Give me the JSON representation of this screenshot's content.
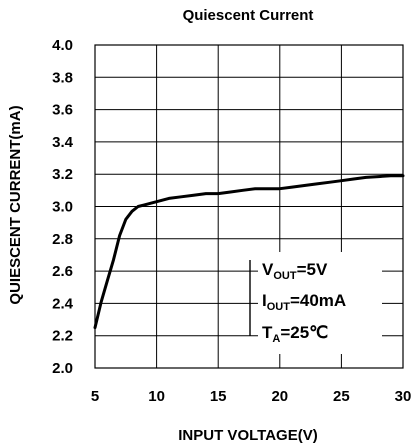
{
  "chart_data": {
    "type": "line",
    "title": "Quiescent Current",
    "xlabel": "INPUT VOLTAGE(V)",
    "ylabel": "QUIESCENT CURRENT(mA)",
    "xlim": [
      5,
      30
    ],
    "ylim": [
      2.0,
      4.0
    ],
    "x_ticks": [
      5,
      10,
      15,
      20,
      25,
      30
    ],
    "x_tick_labels": [
      "5",
      "10",
      "15",
      "20",
      "25",
      "30"
    ],
    "y_ticks": [
      2.0,
      2.2,
      2.4,
      2.6,
      2.8,
      3.0,
      3.2,
      3.4,
      3.6,
      3.8,
      4.0
    ],
    "y_tick_labels": [
      "2.0",
      "2.2",
      "2.4",
      "2.6",
      "2.8",
      "3.0",
      "3.2",
      "3.4",
      "3.6",
      "3.8",
      "4.0"
    ],
    "grid": true,
    "series": [
      {
        "color": "#000000",
        "points": [
          [
            5.0,
            2.25
          ],
          [
            5.5,
            2.41
          ],
          [
            6.0,
            2.54
          ],
          [
            6.5,
            2.67
          ],
          [
            7.0,
            2.82
          ],
          [
            7.5,
            2.92
          ],
          [
            8.0,
            2.97
          ],
          [
            8.5,
            3.0
          ],
          [
            9.0,
            3.01
          ],
          [
            9.5,
            3.02
          ],
          [
            10.0,
            3.03
          ],
          [
            11.0,
            3.05
          ],
          [
            12.0,
            3.06
          ],
          [
            13.0,
            3.07
          ],
          [
            14.0,
            3.08
          ],
          [
            15.0,
            3.08
          ],
          [
            16.0,
            3.09
          ],
          [
            17.0,
            3.1
          ],
          [
            18.0,
            3.11
          ],
          [
            19.0,
            3.11
          ],
          [
            20.0,
            3.11
          ],
          [
            21.0,
            3.12
          ],
          [
            22.0,
            3.13
          ],
          [
            23.0,
            3.14
          ],
          [
            24.0,
            3.15
          ],
          [
            25.0,
            3.16
          ],
          [
            26.0,
            3.17
          ],
          [
            27.0,
            3.18
          ],
          [
            28.0,
            3.185
          ],
          [
            29.0,
            3.19
          ],
          [
            30.0,
            3.19
          ]
        ]
      }
    ],
    "annotations": {
      "line1": {
        "main": "V",
        "sub": "OUT",
        "rest": "=5V"
      },
      "line2": {
        "main": "I",
        "sub": "OUT",
        "rest": "=40mA"
      },
      "line3": {
        "main": "T",
        "sub": "A",
        "rest": "=25℃"
      }
    },
    "legend_placement": "bottom-right"
  }
}
